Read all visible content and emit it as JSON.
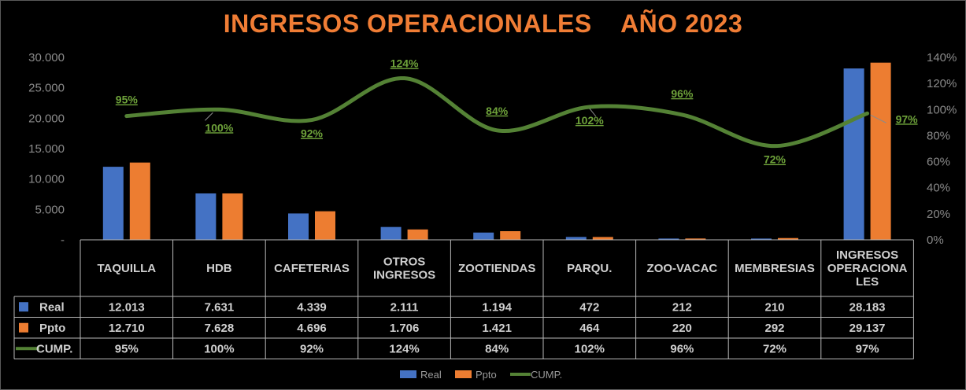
{
  "chart_data": {
    "type": "bar",
    "title": "INGRESOS OPERACIONALES    AÑO 2023",
    "categories": [
      [
        "TAQUILLA"
      ],
      [
        "HDB"
      ],
      [
        "CAFETERIAS"
      ],
      [
        "OTROS",
        "INGRESOS"
      ],
      [
        "ZOOTIENDAS"
      ],
      [
        "PARQU."
      ],
      [
        "ZOO-VACAC"
      ],
      [
        "MEMBRESIAS"
      ],
      [
        "INGRESOS",
        "OPERACIONA",
        "LES"
      ]
    ],
    "series": [
      {
        "name": "Real",
        "type": "bar",
        "color": "#4472c4",
        "values": [
          12013,
          7631,
          4339,
          2111,
          1194,
          472,
          212,
          210,
          28183
        ],
        "labels": [
          "12.013",
          "7.631",
          "4.339",
          "2.111",
          "1.194",
          "472",
          "212",
          "210",
          "28.183"
        ]
      },
      {
        "name": "Ppto",
        "type": "bar",
        "color": "#ed7d31",
        "values": [
          12710,
          7628,
          4696,
          1706,
          1421,
          464,
          220,
          292,
          29137
        ],
        "labels": [
          "12.710",
          "7.628",
          "4.696",
          "1.706",
          "1.421",
          "464",
          "220",
          "292",
          "29.137"
        ]
      },
      {
        "name": "CUMP.",
        "type": "line",
        "axis": "right",
        "color": "#548235",
        "values": [
          95,
          100,
          92,
          124,
          84,
          102,
          96,
          72,
          97
        ],
        "labels": [
          "95%",
          "100%",
          "92%",
          "124%",
          "84%",
          "102%",
          "96%",
          "72%",
          "97%"
        ]
      }
    ],
    "y_left": {
      "ylim": [
        0,
        30000
      ],
      "ticks": [
        "-",
        "5.000",
        "10.000",
        "15.000",
        "20.000",
        "25.000",
        "30.000"
      ]
    },
    "y_right": {
      "ylim": [
        0,
        140
      ],
      "ticks": [
        "0%",
        "20%",
        "40%",
        "60%",
        "80%",
        "100%",
        "120%",
        "140%"
      ]
    },
    "grid": false,
    "legend": "bottom",
    "data_table": true
  },
  "legend_items": [
    {
      "name": "Real",
      "color": "#4472c4",
      "kind": "bar"
    },
    {
      "name": "Ppto",
      "color": "#ed7d31",
      "kind": "bar"
    },
    {
      "name": "CUMP.",
      "color": "#548235",
      "kind": "line"
    }
  ]
}
